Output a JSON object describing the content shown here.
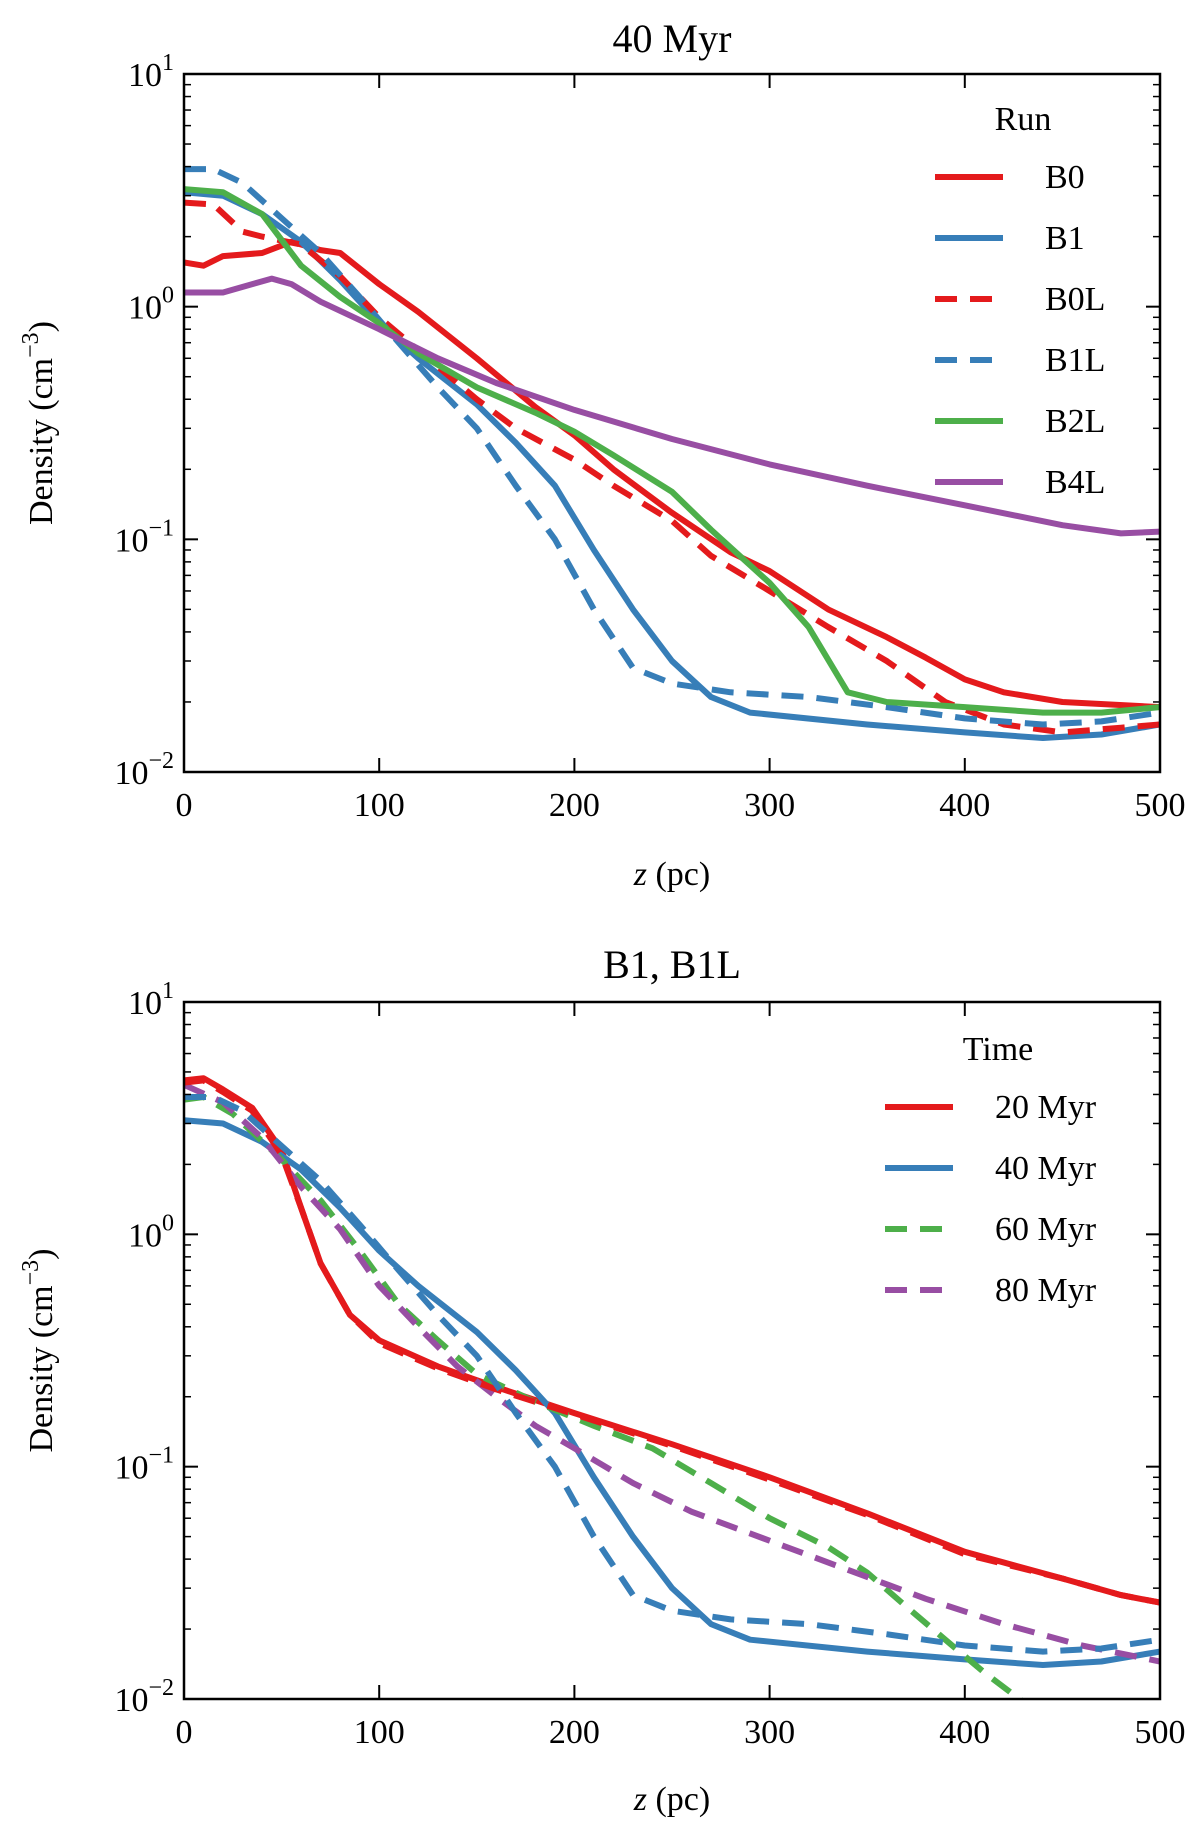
{
  "chart_data": [
    {
      "type": "line",
      "title": "40 Myr",
      "xlabel_var": "z",
      "xlabel_unit": " (pc)",
      "ylabel": "Density (cm",
      "ylabel_exp": "−3",
      "ylabel_close": ")",
      "xlim": [
        0,
        500
      ],
      "ylim": [
        0.01,
        10
      ],
      "yscale": "log",
      "xticks": [
        "0",
        "100",
        "200",
        "300",
        "400",
        "500"
      ],
      "yticks": [
        {
          "base": "10",
          "exp": "1"
        },
        {
          "base": "10",
          "exp": "0"
        },
        {
          "base": "10",
          "exp": "−1"
        },
        {
          "base": "10",
          "exp": "−2"
        }
      ],
      "legend_title": "Run",
      "legend_placement": "top-right",
      "series": [
        {
          "name": "B0",
          "color": "#e41a1c",
          "dashed": false,
          "legend": true,
          "points": [
            [
              0,
              1.55
            ],
            [
              10,
              1.5
            ],
            [
              20,
              1.65
            ],
            [
              40,
              1.7
            ],
            [
              55,
              1.9
            ],
            [
              70,
              1.75
            ],
            [
              80,
              1.7
            ],
            [
              100,
              1.25
            ],
            [
              120,
              0.95
            ],
            [
              150,
              0.6
            ],
            [
              180,
              0.37
            ],
            [
              200,
              0.28
            ],
            [
              220,
              0.2
            ],
            [
              250,
              0.13
            ],
            [
              280,
              0.088
            ],
            [
              300,
              0.073
            ],
            [
              330,
              0.05
            ],
            [
              360,
              0.038
            ],
            [
              380,
              0.031
            ],
            [
              400,
              0.025
            ],
            [
              420,
              0.022
            ],
            [
              450,
              0.02
            ],
            [
              500,
              0.019
            ]
          ]
        },
        {
          "name": "B1",
          "color": "#377eb8",
          "dashed": false,
          "legend": true,
          "points": [
            [
              0,
              3.1
            ],
            [
              20,
              3.0
            ],
            [
              40,
              2.5
            ],
            [
              60,
              1.9
            ],
            [
              80,
              1.3
            ],
            [
              100,
              0.85
            ],
            [
              120,
              0.6
            ],
            [
              150,
              0.38
            ],
            [
              170,
              0.26
            ],
            [
              190,
              0.17
            ],
            [
              210,
              0.09
            ],
            [
              230,
              0.05
            ],
            [
              250,
              0.03
            ],
            [
              270,
              0.021
            ],
            [
              290,
              0.018
            ],
            [
              350,
              0.016
            ],
            [
              400,
              0.0148
            ],
            [
              440,
              0.014
            ],
            [
              470,
              0.0145
            ],
            [
              500,
              0.016
            ]
          ]
        },
        {
          "name": "B0L",
          "color": "#e41a1c",
          "dashed": true,
          "legend": true,
          "points": [
            [
              0,
              2.8
            ],
            [
              15,
              2.75
            ],
            [
              30,
              2.1
            ],
            [
              40,
              2.0
            ],
            [
              60,
              1.85
            ],
            [
              80,
              1.35
            ],
            [
              100,
              0.9
            ],
            [
              120,
              0.65
            ],
            [
              150,
              0.4
            ],
            [
              170,
              0.3
            ],
            [
              200,
              0.22
            ],
            [
              220,
              0.17
            ],
            [
              250,
              0.12
            ],
            [
              270,
              0.085
            ],
            [
              300,
              0.06
            ],
            [
              330,
              0.042
            ],
            [
              360,
              0.03
            ],
            [
              390,
              0.02
            ],
            [
              420,
              0.016
            ],
            [
              450,
              0.0148
            ],
            [
              480,
              0.0155
            ],
            [
              500,
              0.016
            ]
          ]
        },
        {
          "name": "B1L",
          "color": "#377eb8",
          "dashed": true,
          "legend": true,
          "points": [
            [
              0,
              3.9
            ],
            [
              15,
              3.9
            ],
            [
              30,
              3.4
            ],
            [
              50,
              2.4
            ],
            [
              70,
              1.7
            ],
            [
              90,
              1.1
            ],
            [
              110,
              0.7
            ],
            [
              130,
              0.45
            ],
            [
              150,
              0.3
            ],
            [
              170,
              0.17
            ],
            [
              190,
              0.1
            ],
            [
              210,
              0.05
            ],
            [
              230,
              0.028
            ],
            [
              250,
              0.024
            ],
            [
              280,
              0.022
            ],
            [
              320,
              0.021
            ],
            [
              360,
              0.019
            ],
            [
              400,
              0.017
            ],
            [
              440,
              0.016
            ],
            [
              470,
              0.0165
            ],
            [
              500,
              0.018
            ]
          ]
        },
        {
          "name": "B2L",
          "color": "#4daf4a",
          "dashed": false,
          "legend": true,
          "points": [
            [
              0,
              3.2
            ],
            [
              20,
              3.1
            ],
            [
              40,
              2.5
            ],
            [
              60,
              1.5
            ],
            [
              80,
              1.1
            ],
            [
              100,
              0.85
            ],
            [
              120,
              0.63
            ],
            [
              150,
              0.45
            ],
            [
              180,
              0.35
            ],
            [
              200,
              0.29
            ],
            [
              220,
              0.23
            ],
            [
              250,
              0.16
            ],
            [
              270,
              0.11
            ],
            [
              300,
              0.065
            ],
            [
              320,
              0.042
            ],
            [
              340,
              0.022
            ],
            [
              360,
              0.02
            ],
            [
              400,
              0.019
            ],
            [
              440,
              0.018
            ],
            [
              470,
              0.018
            ],
            [
              500,
              0.019
            ]
          ]
        },
        {
          "name": "B4L",
          "color": "#984ea3",
          "dashed": false,
          "legend": true,
          "points": [
            [
              0,
              1.15
            ],
            [
              20,
              1.15
            ],
            [
              35,
              1.25
            ],
            [
              45,
              1.32
            ],
            [
              55,
              1.25
            ],
            [
              70,
              1.05
            ],
            [
              100,
              0.8
            ],
            [
              130,
              0.6
            ],
            [
              160,
              0.47
            ],
            [
              200,
              0.36
            ],
            [
              250,
              0.27
            ],
            [
              300,
              0.21
            ],
            [
              350,
              0.17
            ],
            [
              400,
              0.14
            ],
            [
              450,
              0.115
            ],
            [
              480,
              0.106
            ],
            [
              500,
              0.108
            ]
          ]
        }
      ]
    },
    {
      "type": "line",
      "title": "B1, B1L",
      "xlabel_var": "z",
      "xlabel_unit": " (pc)",
      "ylabel": "Density (cm",
      "ylabel_exp": "−3",
      "ylabel_close": ")",
      "xlim": [
        0,
        500
      ],
      "ylim": [
        0.01,
        10
      ],
      "yscale": "log",
      "xticks": [
        "0",
        "100",
        "200",
        "300",
        "400",
        "500"
      ],
      "yticks": [
        {
          "base": "10",
          "exp": "1"
        },
        {
          "base": "10",
          "exp": "0"
        },
        {
          "base": "10",
          "exp": "−1"
        },
        {
          "base": "10",
          "exp": "−2"
        }
      ],
      "legend_title": "Time",
      "legend_placement": "top-right",
      "series": [
        {
          "name": "20 Myr",
          "color": "#e41a1c",
          "dashed": false,
          "legend": true,
          "points": [
            [
              0,
              4.6
            ],
            [
              10,
              4.7
            ],
            [
              20,
              4.2
            ],
            [
              35,
              3.5
            ],
            [
              50,
              2.3
            ],
            [
              60,
              1.3
            ],
            [
              70,
              0.75
            ],
            [
              85,
              0.45
            ],
            [
              100,
              0.35
            ],
            [
              130,
              0.27
            ],
            [
              160,
              0.22
            ],
            [
              200,
              0.17
            ],
            [
              250,
              0.125
            ],
            [
              300,
              0.09
            ],
            [
              350,
              0.063
            ],
            [
              400,
              0.043
            ],
            [
              450,
              0.033
            ],
            [
              480,
              0.028
            ],
            [
              500,
              0.026
            ]
          ]
        },
        {
          "name": "40 Myr",
          "color": "#377eb8",
          "dashed": false,
          "legend": true,
          "points": [
            [
              0,
              3.1
            ],
            [
              20,
              3.0
            ],
            [
              40,
              2.5
            ],
            [
              60,
              1.9
            ],
            [
              80,
              1.3
            ],
            [
              100,
              0.85
            ],
            [
              120,
              0.6
            ],
            [
              150,
              0.38
            ],
            [
              170,
              0.26
            ],
            [
              190,
              0.17
            ],
            [
              210,
              0.09
            ],
            [
              230,
              0.05
            ],
            [
              250,
              0.03
            ],
            [
              270,
              0.021
            ],
            [
              290,
              0.018
            ],
            [
              350,
              0.016
            ],
            [
              400,
              0.0148
            ],
            [
              440,
              0.014
            ],
            [
              470,
              0.0145
            ],
            [
              500,
              0.016
            ]
          ]
        },
        {
          "name": "60 Myr",
          "color": "#4daf4a",
          "dashed": true,
          "legend": true,
          "points": [
            [
              0,
              3.8
            ],
            [
              10,
              3.9
            ],
            [
              25,
              3.3
            ],
            [
              50,
              2.1
            ],
            [
              70,
              1.4
            ],
            [
              90,
              0.85
            ],
            [
              110,
              0.5
            ],
            [
              130,
              0.35
            ],
            [
              150,
              0.25
            ],
            [
              180,
              0.19
            ],
            [
              210,
              0.15
            ],
            [
              240,
              0.12
            ],
            [
              270,
              0.085
            ],
            [
              300,
              0.06
            ],
            [
              330,
              0.045
            ],
            [
              350,
              0.035
            ],
            [
              370,
              0.025
            ],
            [
              390,
              0.018
            ],
            [
              410,
              0.013
            ],
            [
              430,
              0.0097
            ]
          ]
        },
        {
          "name": "80 Myr",
          "color": "#984ea3",
          "dashed": true,
          "legend": true,
          "points": [
            [
              0,
              4.4
            ],
            [
              20,
              3.7
            ],
            [
              40,
              2.6
            ],
            [
              60,
              1.6
            ],
            [
              80,
              1.05
            ],
            [
              100,
              0.6
            ],
            [
              120,
              0.4
            ],
            [
              140,
              0.27
            ],
            [
              160,
              0.2
            ],
            [
              180,
              0.15
            ],
            [
              200,
              0.12
            ],
            [
              230,
              0.085
            ],
            [
              260,
              0.064
            ],
            [
              300,
              0.048
            ],
            [
              340,
              0.036
            ],
            [
              380,
              0.027
            ],
            [
              420,
              0.021
            ],
            [
              460,
              0.017
            ],
            [
              500,
              0.0145
            ]
          ]
        },
        {
          "name": "20 Myr (B1L)",
          "color": "#e41a1c",
          "dashed": true,
          "legend": false,
          "points": [
            [
              0,
              4.5
            ],
            [
              10,
              4.6
            ],
            [
              20,
              4.1
            ],
            [
              35,
              3.4
            ],
            [
              50,
              2.2
            ],
            [
              60,
              1.3
            ],
            [
              70,
              0.75
            ],
            [
              85,
              0.45
            ],
            [
              100,
              0.34
            ],
            [
              130,
              0.265
            ],
            [
              160,
              0.215
            ],
            [
              200,
              0.168
            ],
            [
              250,
              0.123
            ],
            [
              300,
              0.088
            ],
            [
              350,
              0.062
            ],
            [
              400,
              0.042
            ],
            [
              450,
              0.033
            ],
            [
              480,
              0.028
            ],
            [
              500,
              0.026
            ]
          ]
        },
        {
          "name": "40 Myr (B1L)",
          "color": "#377eb8",
          "dashed": true,
          "legend": false,
          "points": [
            [
              0,
              3.9
            ],
            [
              15,
              3.9
            ],
            [
              30,
              3.4
            ],
            [
              50,
              2.4
            ],
            [
              70,
              1.7
            ],
            [
              90,
              1.1
            ],
            [
              110,
              0.7
            ],
            [
              130,
              0.45
            ],
            [
              150,
              0.3
            ],
            [
              170,
              0.17
            ],
            [
              190,
              0.1
            ],
            [
              210,
              0.05
            ],
            [
              230,
              0.028
            ],
            [
              250,
              0.024
            ],
            [
              280,
              0.022
            ],
            [
              320,
              0.021
            ],
            [
              360,
              0.019
            ],
            [
              400,
              0.017
            ],
            [
              440,
              0.016
            ],
            [
              470,
              0.0165
            ],
            [
              500,
              0.018
            ]
          ]
        }
      ]
    }
  ]
}
